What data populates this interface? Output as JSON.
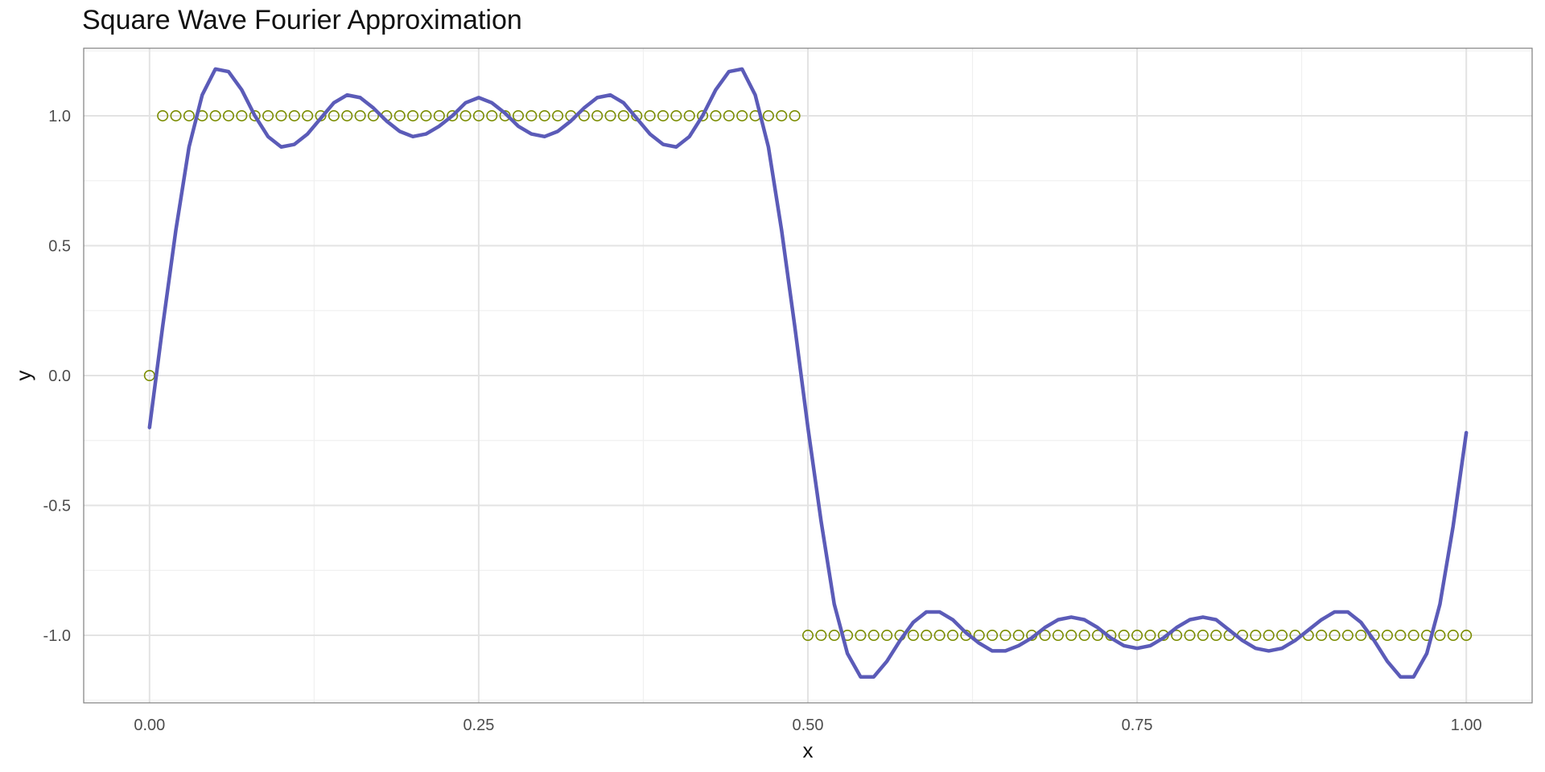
{
  "chart_data": {
    "type": "line",
    "title": "Square Wave Fourier Approximation",
    "xlabel": "x",
    "ylabel": "y",
    "xlim": [
      -0.05,
      1.05
    ],
    "ylim": [
      -1.26,
      1.26
    ],
    "grid": true,
    "legend": "none",
    "x_ticks": [
      0.0,
      0.25,
      0.5,
      0.75,
      1.0
    ],
    "x_tick_labels": [
      "0.00",
      "0.25",
      "0.50",
      "0.75",
      "1.00"
    ],
    "y_ticks": [
      -1.0,
      -0.5,
      0.0,
      0.5,
      1.0
    ],
    "y_tick_labels": [
      "-1.0",
      "-0.5",
      "0.0",
      "0.5",
      "1.0"
    ],
    "colors": {
      "approximation": "#5b5bb8",
      "square_wave": "#7a8c00"
    },
    "series": [
      {
        "kind": "line",
        "x": [
          0.0,
          0.01,
          0.02,
          0.03,
          0.04,
          0.05,
          0.06,
          0.07,
          0.08,
          0.09,
          0.1,
          0.11,
          0.12,
          0.13,
          0.14,
          0.15,
          0.16,
          0.17,
          0.18,
          0.19,
          0.2,
          0.21,
          0.22,
          0.23,
          0.24,
          0.25,
          0.26,
          0.27,
          0.28,
          0.29,
          0.3,
          0.31,
          0.32,
          0.33,
          0.34,
          0.35,
          0.36,
          0.37,
          0.38,
          0.39,
          0.4,
          0.41,
          0.42,
          0.43,
          0.44,
          0.45,
          0.46,
          0.47,
          0.48,
          0.49,
          0.5,
          0.51,
          0.52,
          0.53,
          0.54,
          0.55,
          0.56,
          0.57,
          0.58,
          0.59,
          0.6,
          0.61,
          0.62,
          0.63,
          0.64,
          0.65,
          0.66,
          0.67,
          0.68,
          0.69,
          0.7,
          0.71,
          0.72,
          0.73,
          0.74,
          0.75,
          0.76,
          0.77,
          0.78,
          0.79,
          0.8,
          0.81,
          0.82,
          0.83,
          0.84,
          0.85,
          0.86,
          0.87,
          0.88,
          0.89,
          0.9,
          0.91,
          0.92,
          0.93,
          0.94,
          0.95,
          0.96,
          0.97,
          0.98,
          0.99,
          1.0
        ],
        "y": [
          -0.2,
          0.19,
          0.56,
          0.88,
          1.08,
          1.18,
          1.17,
          1.1,
          1.0,
          0.92,
          0.88,
          0.89,
          0.93,
          0.99,
          1.05,
          1.08,
          1.07,
          1.03,
          0.98,
          0.94,
          0.92,
          0.93,
          0.96,
          1.0,
          1.05,
          1.07,
          1.05,
          1.01,
          0.96,
          0.93,
          0.92,
          0.94,
          0.98,
          1.03,
          1.07,
          1.08,
          1.05,
          0.99,
          0.93,
          0.89,
          0.88,
          0.92,
          1.0,
          1.1,
          1.17,
          1.18,
          1.08,
          0.88,
          0.56,
          0.19,
          -0.2,
          -0.56,
          -0.88,
          -1.07,
          -1.16,
          -1.16,
          -1.1,
          -1.02,
          -0.95,
          -0.91,
          -0.91,
          -0.94,
          -0.99,
          -1.03,
          -1.06,
          -1.06,
          -1.04,
          -1.01,
          -0.97,
          -0.94,
          -0.93,
          -0.94,
          -0.97,
          -1.01,
          -1.04,
          -1.05,
          -1.04,
          -1.01,
          -0.97,
          -0.94,
          -0.93,
          -0.94,
          -0.98,
          -1.02,
          -1.05,
          -1.06,
          -1.05,
          -1.02,
          -0.98,
          -0.94,
          -0.91,
          -0.91,
          -0.95,
          -1.02,
          -1.1,
          -1.16,
          -1.16,
          -1.07,
          -0.88,
          -0.58,
          -0.22
        ]
      },
      {
        "kind": "points",
        "x": [
          0.0,
          0.01,
          0.02,
          0.03,
          0.04,
          0.05,
          0.06,
          0.07,
          0.08,
          0.09,
          0.1,
          0.11,
          0.12,
          0.13,
          0.14,
          0.15,
          0.16,
          0.17,
          0.18,
          0.19,
          0.2,
          0.21,
          0.22,
          0.23,
          0.24,
          0.25,
          0.26,
          0.27,
          0.28,
          0.29,
          0.3,
          0.31,
          0.32,
          0.33,
          0.34,
          0.35,
          0.36,
          0.37,
          0.38,
          0.39,
          0.4,
          0.41,
          0.42,
          0.43,
          0.44,
          0.45,
          0.46,
          0.47,
          0.48,
          0.49,
          0.5,
          0.51,
          0.52,
          0.53,
          0.54,
          0.55,
          0.56,
          0.57,
          0.58,
          0.59,
          0.6,
          0.61,
          0.62,
          0.63,
          0.64,
          0.65,
          0.66,
          0.67,
          0.68,
          0.69,
          0.7,
          0.71,
          0.72,
          0.73,
          0.74,
          0.75,
          0.76,
          0.77,
          0.78,
          0.79,
          0.8,
          0.81,
          0.82,
          0.83,
          0.84,
          0.85,
          0.86,
          0.87,
          0.88,
          0.89,
          0.9,
          0.91,
          0.92,
          0.93,
          0.94,
          0.95,
          0.96,
          0.97,
          0.98,
          0.99,
          1.0
        ],
        "y": [
          0.0,
          1.0,
          1.0,
          1.0,
          1.0,
          1.0,
          1.0,
          1.0,
          1.0,
          1.0,
          1.0,
          1.0,
          1.0,
          1.0,
          1.0,
          1.0,
          1.0,
          1.0,
          1.0,
          1.0,
          1.0,
          1.0,
          1.0,
          1.0,
          1.0,
          1.0,
          1.0,
          1.0,
          1.0,
          1.0,
          1.0,
          1.0,
          1.0,
          1.0,
          1.0,
          1.0,
          1.0,
          1.0,
          1.0,
          1.0,
          1.0,
          1.0,
          1.0,
          1.0,
          1.0,
          1.0,
          1.0,
          1.0,
          1.0,
          1.0,
          -1.0,
          -1.0,
          -1.0,
          -1.0,
          -1.0,
          -1.0,
          -1.0,
          -1.0,
          -1.0,
          -1.0,
          -1.0,
          -1.0,
          -1.0,
          -1.0,
          -1.0,
          -1.0,
          -1.0,
          -1.0,
          -1.0,
          -1.0,
          -1.0,
          -1.0,
          -1.0,
          -1.0,
          -1.0,
          -1.0,
          -1.0,
          -1.0,
          -1.0,
          -1.0,
          -1.0,
          -1.0,
          -1.0,
          -1.0,
          -1.0,
          -1.0,
          -1.0,
          -1.0,
          -1.0,
          -1.0,
          -1.0,
          -1.0,
          -1.0,
          -1.0,
          -1.0,
          -1.0,
          -1.0,
          -1.0,
          -1.0,
          -1.0,
          -1.0
        ]
      }
    ]
  }
}
